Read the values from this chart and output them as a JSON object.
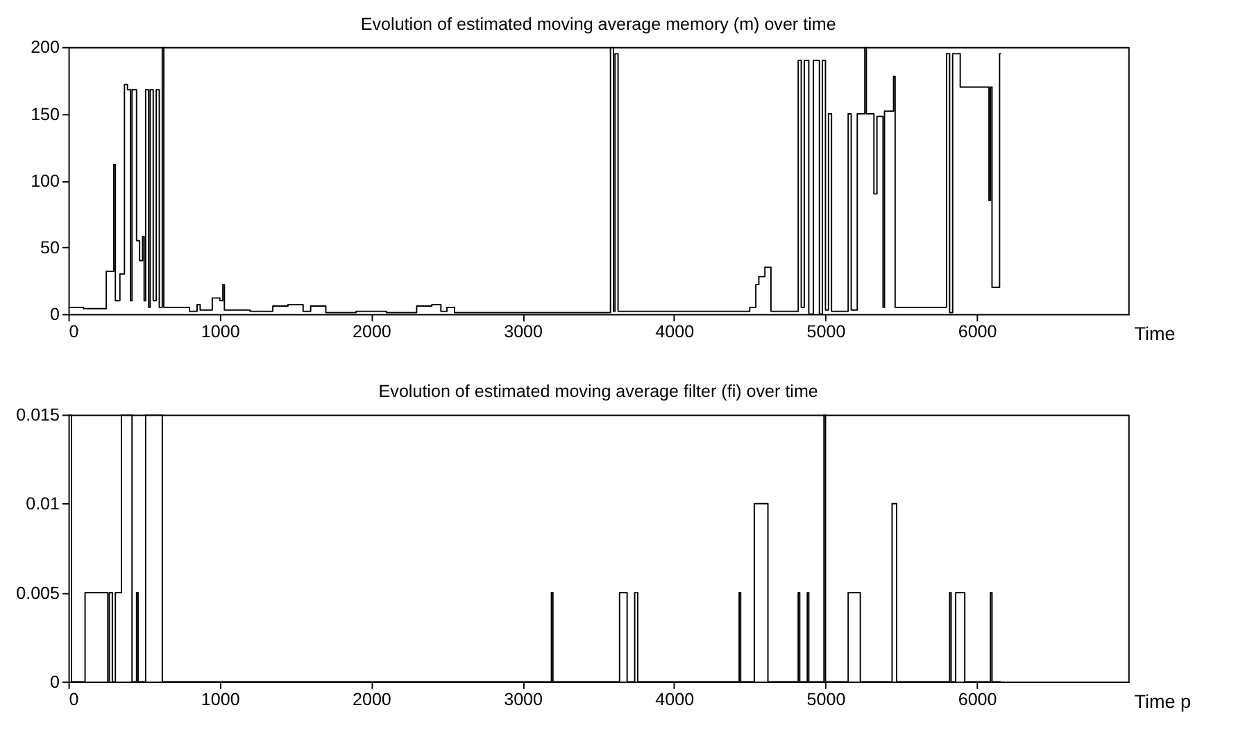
{
  "chart_data": [
    {
      "type": "step",
      "title": "Evolution of estimated moving average memory (m) over time",
      "xlabel": "Time",
      "x": [
        0,
        100,
        250,
        300,
        310,
        340,
        370,
        390,
        410,
        420,
        450,
        470,
        490,
        500,
        510,
        530,
        540,
        560,
        580,
        600,
        620,
        630,
        800,
        850,
        870,
        950,
        1000,
        1020,
        1030,
        1200,
        1350,
        1450,
        1550,
        1600,
        1700,
        1900,
        2100,
        2300,
        2400,
        2460,
        2500,
        2550,
        3000,
        3580,
        3600,
        3610,
        3630,
        4500,
        4540,
        4560,
        4600,
        4640,
        4820,
        4840,
        4860,
        4890,
        4920,
        4960,
        4980,
        5000,
        5020,
        5040,
        5150,
        5170,
        5210,
        5240,
        5260,
        5270,
        5320,
        5340,
        5380,
        5390,
        5450,
        5460,
        5800,
        5820,
        5840,
        5890,
        6080,
        6090,
        6100,
        6150,
        6160
      ],
      "series": [
        {
          "color": "#000000",
          "values": [
            5,
            4,
            32,
            112,
            10,
            30,
            172,
            168,
            10,
            168,
            55,
            40,
            58,
            10,
            168,
            5,
            168,
            10,
            168,
            5,
            200,
            5,
            2,
            7,
            3,
            12,
            10,
            22,
            3,
            2,
            6,
            7,
            2,
            6,
            1,
            2,
            1,
            6,
            7,
            2,
            5,
            1,
            1,
            200,
            2,
            195,
            2,
            5,
            22,
            28,
            35,
            2,
            190,
            5,
            190,
            0,
            190,
            0,
            190,
            3,
            150,
            2,
            150,
            3,
            150,
            150,
            200,
            150,
            90,
            148,
            5,
            152,
            178,
            5,
            195,
            1,
            195,
            170,
            85,
            170,
            20,
            195,
            195
          ]
        }
      ],
      "xlim": [
        0,
        7000
      ],
      "xticks": [
        0,
        1000,
        2000,
        3000,
        4000,
        5000,
        6000
      ],
      "ylim": [
        0,
        200
      ],
      "yticks": [
        0,
        50,
        100,
        150,
        200
      ],
      "grid": false
    },
    {
      "type": "step",
      "title": "Evolution of estimated moving average filter (fi) over time",
      "xlabel": "Time p",
      "x": [
        0,
        20,
        110,
        260,
        270,
        290,
        310,
        350,
        420,
        450,
        460,
        510,
        620,
        3190,
        3200,
        3640,
        3690,
        3740,
        3760,
        4430,
        4440,
        4530,
        4620,
        4820,
        4830,
        4880,
        4890,
        4990,
        5000,
        5150,
        5230,
        5440,
        5470,
        5820,
        5830,
        5860,
        5920,
        6090,
        6100,
        6160
      ],
      "series": [
        {
          "color": "#000000",
          "values": [
            0.015,
            0,
            0.005,
            0,
            0.005,
            0,
            0.005,
            0.015,
            0,
            0.005,
            0,
            0.015,
            0,
            0.005,
            0,
            0.005,
            0,
            0.005,
            0,
            0.005,
            0,
            0.01,
            0,
            0.005,
            0,
            0.005,
            0,
            0.015,
            0,
            0.005,
            0,
            0.01,
            0,
            0.005,
            0,
            0.005,
            0,
            0.005,
            0,
            0
          ]
        }
      ],
      "xlim": [
        0,
        7000
      ],
      "xticks": [
        0,
        1000,
        2000,
        3000,
        4000,
        5000,
        6000
      ],
      "ylim": [
        0,
        0.015
      ],
      "yticks": [
        0,
        0.005,
        0.01,
        0.015
      ],
      "grid": false
    }
  ]
}
